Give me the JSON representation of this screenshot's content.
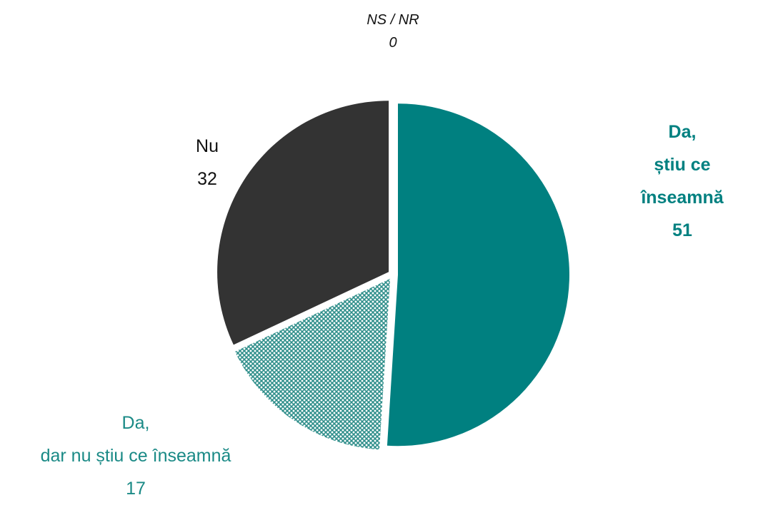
{
  "chart_data": {
    "type": "pie",
    "categories": [
      "Da,\nștiu ce înseamnă",
      "Da,\ndar nu știu ce înseamnă",
      "Nu",
      "NS / NR"
    ],
    "values": [
      51,
      17,
      32,
      0
    ],
    "colors": [
      "#008080",
      "#2e8e8a",
      "#333333",
      "#7f7f7f"
    ],
    "hatched": [
      false,
      true,
      false,
      false
    ]
  }
}
